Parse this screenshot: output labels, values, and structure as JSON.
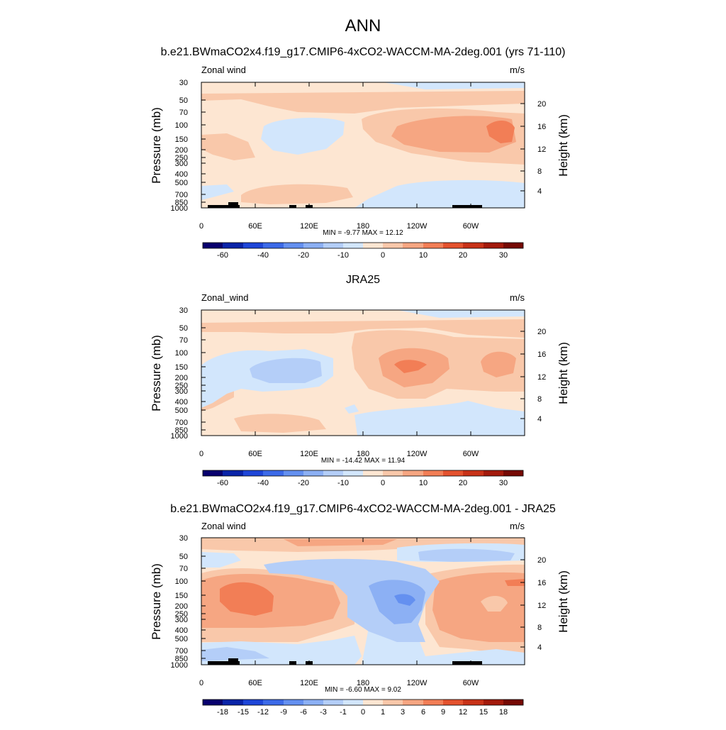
{
  "main_title": "ANN",
  "chart_data": [
    {
      "type": "contour",
      "title": "b.e21.BWmaCO2x4.f19_g17.CMIP6-4xCO2-WACCM-MA-2deg.001 (yrs 71-110)",
      "left_label": "Zonal wind",
      "right_label": "m/s",
      "xlabel": "",
      "ylabel": "Pressure (mb)",
      "ylabel_right": "Height (km)",
      "x_ticks": [
        "0",
        "60E",
        "120E",
        "180",
        "120W",
        "60W"
      ],
      "y_ticks": [
        "30",
        "50",
        "70",
        "100",
        "150",
        "200",
        "250",
        "300",
        "400",
        "500",
        "700",
        "850",
        "1000"
      ],
      "y_ticks_right": [
        "20",
        "16",
        "12",
        "8",
        "4"
      ],
      "minmax": "MIN = -9.77  MAX = 12.12",
      "colorbar_labels": [
        "-60",
        "-40",
        "-20",
        "-10",
        "0",
        "10",
        "20",
        "30"
      ],
      "min": -9.77,
      "max": 12.12
    },
    {
      "type": "contour",
      "title": "JRA25",
      "left_label": "Zonal_wind",
      "right_label": "m/s",
      "xlabel": "",
      "ylabel": "Pressure (mb)",
      "ylabel_right": "Height (km)",
      "x_ticks": [
        "0",
        "60E",
        "120E",
        "180",
        "120W",
        "60W"
      ],
      "y_ticks": [
        "30",
        "50",
        "70",
        "100",
        "150",
        "200",
        "250",
        "300",
        "400",
        "500",
        "700",
        "850",
        "1000"
      ],
      "y_ticks_right": [
        "20",
        "16",
        "12",
        "8",
        "4"
      ],
      "minmax": "MIN = -14.42  MAX = 11.94",
      "colorbar_labels": [
        "-60",
        "-40",
        "-20",
        "-10",
        "0",
        "10",
        "20",
        "30"
      ],
      "min": -14.42,
      "max": 11.94
    },
    {
      "type": "contour",
      "title": "b.e21.BWmaCO2x4.f19_g17.CMIP6-4xCO2-WACCM-MA-2deg.001 - JRA25",
      "left_label": "Zonal wind",
      "right_label": "m/s",
      "xlabel": "",
      "ylabel": "Pressure (mb)",
      "ylabel_right": "Height (km)",
      "x_ticks": [
        "0",
        "60E",
        "120E",
        "180",
        "120W",
        "60W"
      ],
      "y_ticks": [
        "30",
        "50",
        "70",
        "100",
        "150",
        "200",
        "250",
        "300",
        "400",
        "500",
        "700",
        "850",
        "1000"
      ],
      "y_ticks_right": [
        "20",
        "16",
        "12",
        "8",
        "4"
      ],
      "minmax": "MIN = -6.60  MAX =  9.02",
      "colorbar_labels": [
        "-18",
        "-15",
        "-12",
        "-9",
        "-6",
        "-3",
        "-1",
        "0",
        "1",
        "3",
        "6",
        "9",
        "12",
        "15",
        "18"
      ],
      "min": -6.6,
      "max": 9.02
    }
  ],
  "colors": {
    "palette": [
      "#08006e",
      "#0a24a8",
      "#1e46d8",
      "#3c6ae8",
      "#6490f0",
      "#8cb0f4",
      "#b4cef8",
      "#d2e6fc",
      "#fde6d2",
      "#f9c8aa",
      "#f6a682",
      "#f27e56",
      "#e4522e",
      "#c83218",
      "#a31a0c",
      "#760a04"
    ]
  }
}
